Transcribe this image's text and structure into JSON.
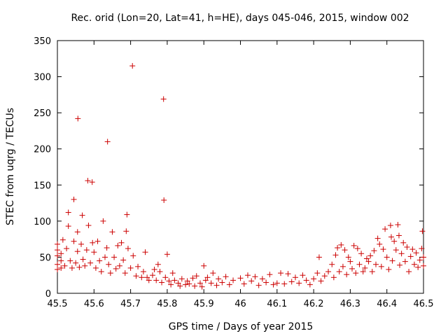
{
  "chart_data": {
    "type": "scatter",
    "title": "Rec. orid (Lon=20, Lat=41, h=HE), days 045-046, 2015, window 002",
    "xlabel": "GPS time / Days of year 2015",
    "ylabel": "STEC from uqrg / TECUs",
    "xlim": [
      45.5,
      46.5
    ],
    "ylim": [
      0,
      350
    ],
    "xticks": [
      45.5,
      45.6,
      45.7,
      45.8,
      45.9,
      46.0,
      46.1,
      46.2,
      46.3,
      46.4,
      46.5
    ],
    "xtick_labels": [
      "45.5",
      "45.6",
      "45.7",
      "45.8",
      "45.9",
      "46",
      "46.1",
      "46.2",
      "46.3",
      "46.4",
      "46.5"
    ],
    "yticks": [
      0,
      50,
      100,
      150,
      200,
      250,
      300,
      350
    ],
    "ytick_labels": [
      "0",
      "50",
      "100",
      "150",
      "200",
      "250",
      "300",
      "350"
    ],
    "grid": false,
    "marker": "+",
    "color": "#cc0000",
    "series": [
      {
        "name": "STEC",
        "points": [
          [
            45.5,
            33
          ],
          [
            45.5,
            40
          ],
          [
            45.5,
            52
          ],
          [
            45.5,
            60
          ],
          [
            45.5,
            68
          ],
          [
            45.51,
            35
          ],
          [
            45.51,
            45
          ],
          [
            45.51,
            55
          ],
          [
            45.515,
            74
          ],
          [
            45.52,
            38
          ],
          [
            45.525,
            62
          ],
          [
            45.53,
            93
          ],
          [
            45.53,
            112
          ],
          [
            45.535,
            45
          ],
          [
            45.54,
            35
          ],
          [
            45.545,
            130
          ],
          [
            45.545,
            72
          ],
          [
            45.55,
            42
          ],
          [
            45.555,
            58
          ],
          [
            45.555,
            85
          ],
          [
            45.556,
            242
          ],
          [
            45.56,
            36
          ],
          [
            45.565,
            68
          ],
          [
            45.568,
            108
          ],
          [
            45.57,
            47
          ],
          [
            45.575,
            38
          ],
          [
            45.58,
            60
          ],
          [
            45.583,
            156
          ],
          [
            45.585,
            94
          ],
          [
            45.59,
            42
          ],
          [
            45.595,
            154
          ],
          [
            45.596,
            70
          ],
          [
            45.6,
            57
          ],
          [
            45.605,
            35
          ],
          [
            45.61,
            72
          ],
          [
            45.615,
            45
          ],
          [
            45.62,
            30
          ],
          [
            45.625,
            100
          ],
          [
            45.63,
            50
          ],
          [
            45.635,
            63
          ],
          [
            45.637,
            210
          ],
          [
            45.64,
            40
          ],
          [
            45.645,
            28
          ],
          [
            45.65,
            85
          ],
          [
            45.655,
            50
          ],
          [
            45.66,
            34
          ],
          [
            45.665,
            66
          ],
          [
            45.67,
            38
          ],
          [
            45.675,
            70
          ],
          [
            45.68,
            46
          ],
          [
            45.685,
            28
          ],
          [
            45.688,
            86
          ],
          [
            45.69,
            109
          ],
          [
            45.693,
            62
          ],
          [
            45.7,
            35
          ],
          [
            45.705,
            315
          ],
          [
            45.707,
            52
          ],
          [
            45.715,
            24
          ],
          [
            45.72,
            37
          ],
          [
            45.73,
            22
          ],
          [
            45.735,
            30
          ],
          [
            45.74,
            57
          ],
          [
            45.745,
            22
          ],
          [
            45.75,
            18
          ],
          [
            45.76,
            25
          ],
          [
            45.765,
            33
          ],
          [
            45.77,
            18
          ],
          [
            45.775,
            40
          ],
          [
            45.78,
            30
          ],
          [
            45.785,
            15
          ],
          [
            45.79,
            269
          ],
          [
            45.791,
            129
          ],
          [
            45.795,
            22
          ],
          [
            45.8,
            54
          ],
          [
            45.805,
            17
          ],
          [
            45.81,
            12
          ],
          [
            45.815,
            28
          ],
          [
            45.82,
            18
          ],
          [
            45.83,
            14
          ],
          [
            45.835,
            10
          ],
          [
            45.84,
            20
          ],
          [
            45.85,
            12
          ],
          [
            45.855,
            17
          ],
          [
            45.86,
            13
          ],
          [
            45.87,
            21
          ],
          [
            45.875,
            10
          ],
          [
            45.88,
            24
          ],
          [
            45.89,
            14
          ],
          [
            45.895,
            9
          ],
          [
            45.9,
            38
          ],
          [
            45.905,
            18
          ],
          [
            45.91,
            22
          ],
          [
            45.92,
            14
          ],
          [
            45.925,
            28
          ],
          [
            45.935,
            11
          ],
          [
            45.94,
            20
          ],
          [
            45.95,
            15
          ],
          [
            45.96,
            23
          ],
          [
            45.97,
            12
          ],
          [
            45.98,
            18
          ],
          [
            46.0,
            21
          ],
          [
            46.01,
            13
          ],
          [
            46.02,
            25
          ],
          [
            46.03,
            17
          ],
          [
            46.04,
            23
          ],
          [
            46.05,
            11
          ],
          [
            46.06,
            20
          ],
          [
            46.07,
            15
          ],
          [
            46.08,
            26
          ],
          [
            46.09,
            12
          ],
          [
            46.1,
            14
          ],
          [
            46.11,
            28
          ],
          [
            46.12,
            13
          ],
          [
            46.13,
            27
          ],
          [
            46.14,
            16
          ],
          [
            46.15,
            22
          ],
          [
            46.16,
            14
          ],
          [
            46.17,
            25
          ],
          [
            46.18,
            18
          ],
          [
            46.19,
            12
          ],
          [
            46.2,
            20
          ],
          [
            46.21,
            28
          ],
          [
            46.215,
            50
          ],
          [
            46.22,
            17
          ],
          [
            46.23,
            24
          ],
          [
            46.24,
            30
          ],
          [
            46.25,
            40
          ],
          [
            46.255,
            22
          ],
          [
            46.26,
            53
          ],
          [
            46.265,
            63
          ],
          [
            46.27,
            30
          ],
          [
            46.275,
            67
          ],
          [
            46.28,
            37
          ],
          [
            46.285,
            60
          ],
          [
            46.29,
            26
          ],
          [
            46.295,
            50
          ],
          [
            46.3,
            44
          ],
          [
            46.305,
            34
          ],
          [
            46.31,
            66
          ],
          [
            46.315,
            28
          ],
          [
            46.32,
            62
          ],
          [
            46.325,
            40
          ],
          [
            46.33,
            55
          ],
          [
            46.335,
            30
          ],
          [
            46.34,
            35
          ],
          [
            46.345,
            48
          ],
          [
            46.35,
            44
          ],
          [
            46.355,
            52
          ],
          [
            46.36,
            30
          ],
          [
            46.365,
            59
          ],
          [
            46.37,
            40
          ],
          [
            46.375,
            76
          ],
          [
            46.38,
            68
          ],
          [
            46.385,
            37
          ],
          [
            46.39,
            61
          ],
          [
            46.395,
            89
          ],
          [
            46.4,
            50
          ],
          [
            46.405,
            33
          ],
          [
            46.41,
            94
          ],
          [
            46.412,
            78
          ],
          [
            46.415,
            45
          ],
          [
            46.42,
            72
          ],
          [
            46.425,
            60
          ],
          [
            46.43,
            95
          ],
          [
            46.433,
            80
          ],
          [
            46.435,
            39
          ],
          [
            46.44,
            55
          ],
          [
            46.445,
            70
          ],
          [
            46.45,
            44
          ],
          [
            46.455,
            64
          ],
          [
            46.46,
            30
          ],
          [
            46.465,
            51
          ],
          [
            46.47,
            61
          ],
          [
            46.475,
            40
          ],
          [
            46.48,
            56
          ],
          [
            46.485,
            36
          ],
          [
            46.49,
            46
          ],
          [
            46.495,
            62
          ],
          [
            46.497,
            86
          ],
          [
            46.5,
            38
          ],
          [
            46.5,
            50
          ]
        ]
      }
    ]
  }
}
